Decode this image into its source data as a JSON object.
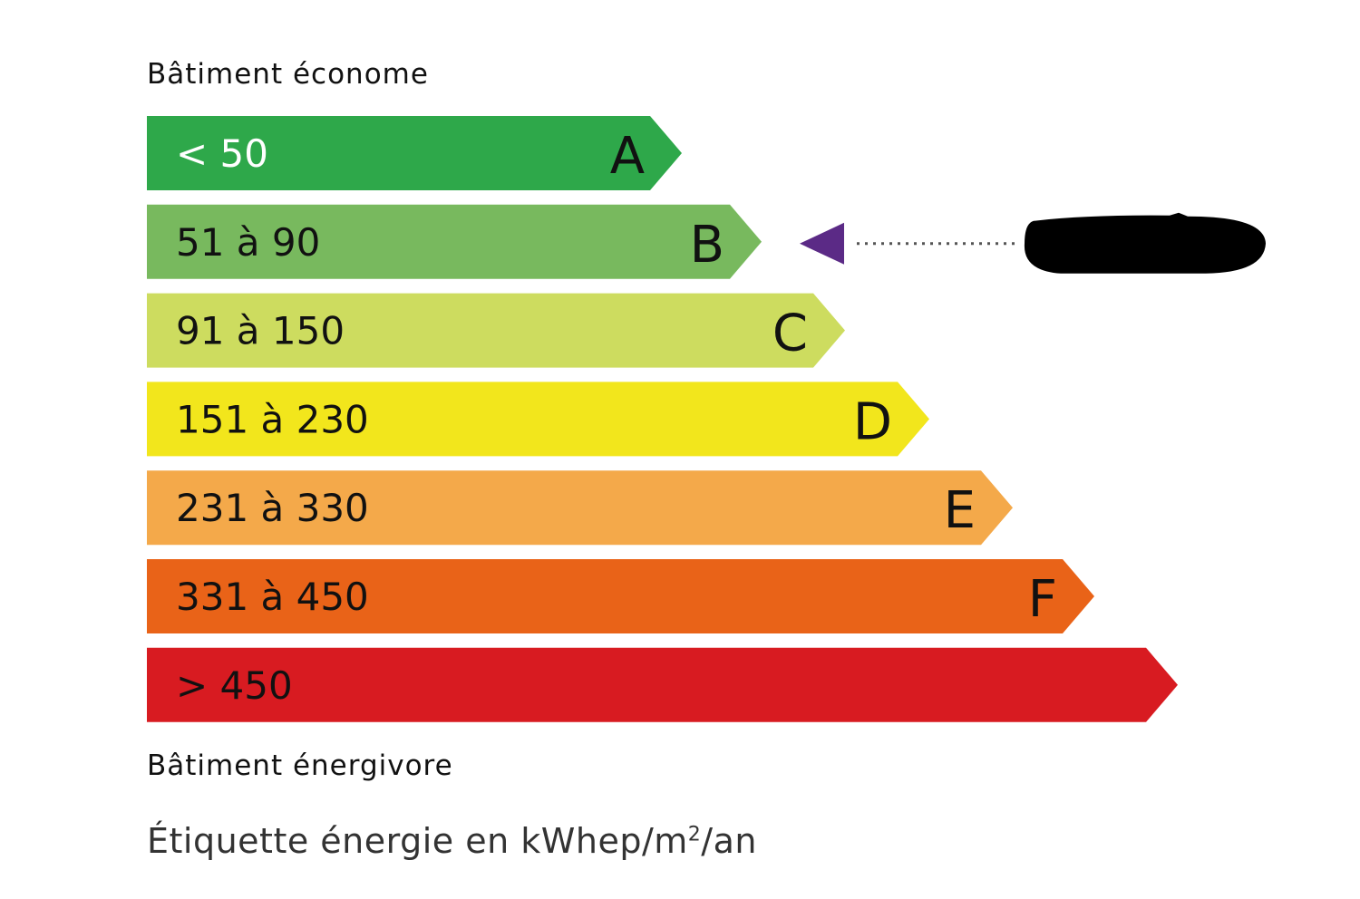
{
  "top_caption": "Bâtiment économe",
  "bottom_caption": "Bâtiment énergivore",
  "unit_label": {
    "prefix": "Étiquette énergie en kWhep/m",
    "sup": "2",
    "suffix": "/an"
  },
  "classes": [
    {
      "letter": "A",
      "range": "< 50",
      "color": "#2ea84a",
      "text_color": "#ffffff"
    },
    {
      "letter": "B",
      "range": "51 à 90",
      "color": "#78b95e",
      "text_color": "#111111"
    },
    {
      "letter": "C",
      "range": "91 à 150",
      "color": "#cddc5f",
      "text_color": "#111111"
    },
    {
      "letter": "D",
      "range": "151 à 230",
      "color": "#f2e61c",
      "text_color": "#111111"
    },
    {
      "letter": "E",
      "range": "231 à 330",
      "color": "#f4a94a",
      "text_color": "#111111"
    },
    {
      "letter": "F",
      "range": "331 à 450",
      "color": "#e96318",
      "text_color": "#111111"
    },
    {
      "letter": "",
      "range": "> 450",
      "color": "#d81b21",
      "text_color": "#111111"
    }
  ],
  "indicator": {
    "class": "B",
    "color": "#5b2a86",
    "value_redacted": true
  }
}
